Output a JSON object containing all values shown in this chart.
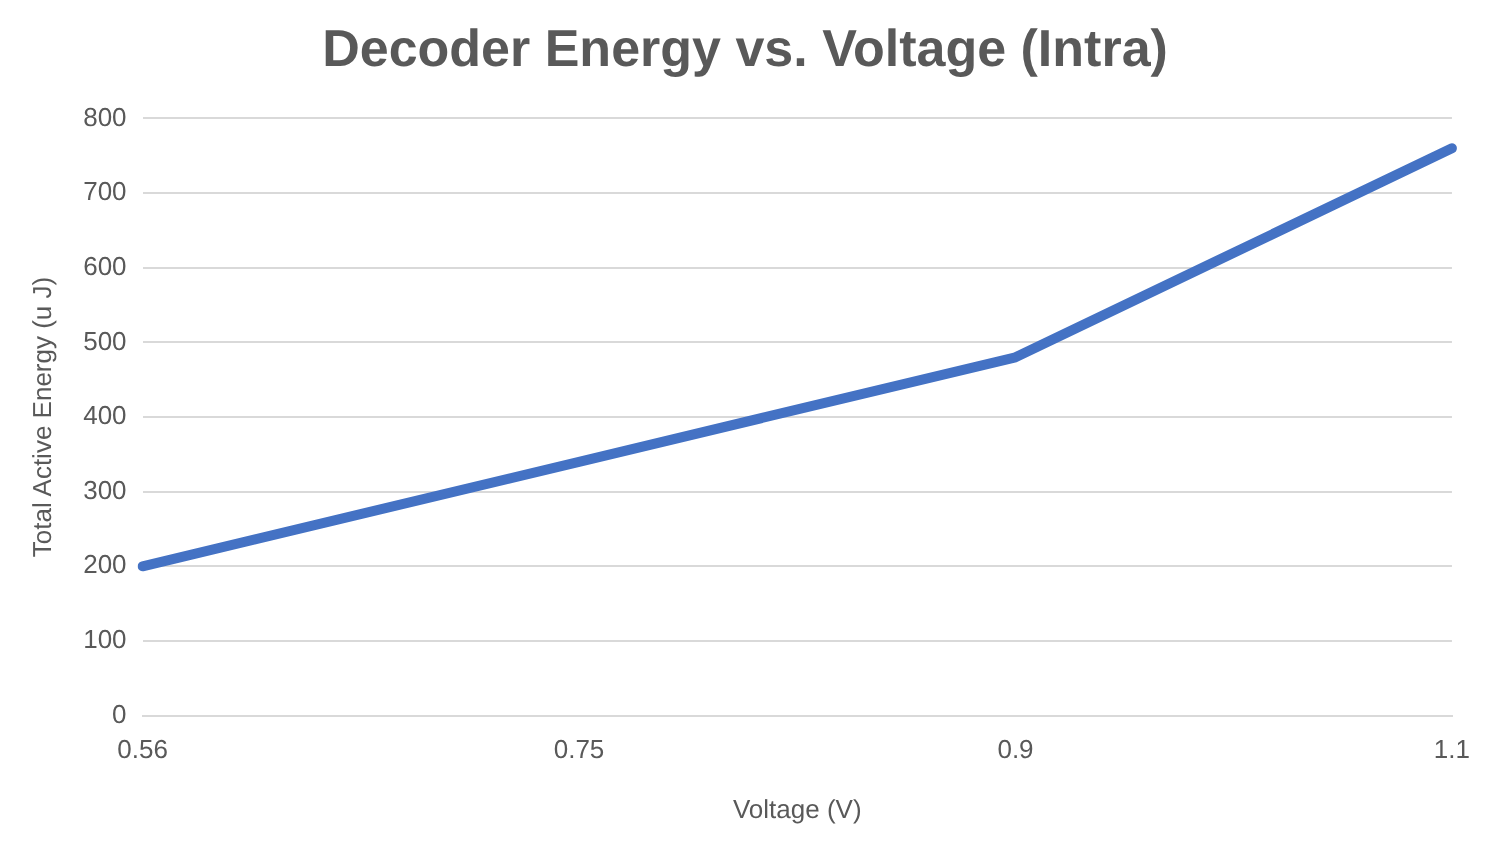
{
  "chart_data": {
    "type": "line",
    "title": "Decoder Energy vs. Voltage (Intra)",
    "xlabel": "Voltage (V)",
    "ylabel": "Total Active Energy (u J)",
    "categories": [
      "0.56",
      "0.75",
      "0.9",
      "1.1"
    ],
    "series": [
      {
        "color": "#4472c4",
        "values": [
          200,
          340,
          480,
          760
        ]
      }
    ],
    "ylim": [
      0,
      800
    ],
    "yticks": [
      0,
      100,
      200,
      300,
      400,
      500,
      600,
      700,
      800
    ],
    "grid": "y",
    "legend": false,
    "marker": "none",
    "line_style": "solid"
  }
}
